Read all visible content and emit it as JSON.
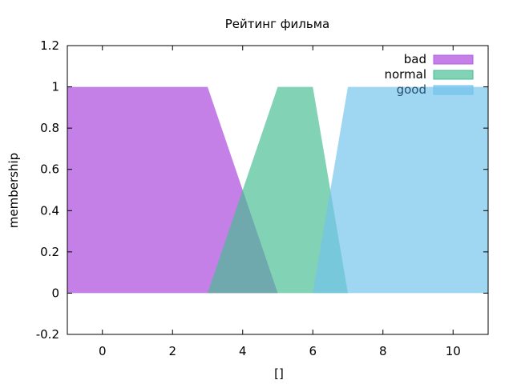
{
  "chart_data": {
    "type": "area",
    "title": "Рейтинг фильма",
    "xlabel": "[]",
    "ylabel": "membership",
    "xlim": [
      -1,
      11
    ],
    "ylim": [
      -0.2,
      1.2
    ],
    "xticks": [
      0,
      2,
      4,
      6,
      8,
      10
    ],
    "xtick_labels": [
      "0",
      "2",
      "4",
      "6",
      "8",
      "10"
    ],
    "yticks": [
      -0.2,
      0,
      0.2,
      0.4,
      0.6,
      0.8,
      1,
      1.2
    ],
    "ytick_labels": [
      "-0.2",
      "0",
      "0.2",
      "0.4",
      "0.6",
      "0.8",
      "1",
      "1.2"
    ],
    "grid": false,
    "legend_position": "top-right",
    "series": [
      {
        "name": "bad",
        "color": "#b45ce0",
        "label_color": "#000000",
        "points": [
          [
            -1,
            1
          ],
          [
            3,
            1
          ],
          [
            5,
            0
          ]
        ]
      },
      {
        "name": "normal",
        "color": "#47bc94",
        "label_color": "#000000",
        "points": [
          [
            3,
            0
          ],
          [
            5,
            1
          ],
          [
            6,
            1
          ],
          [
            7,
            0
          ]
        ]
      },
      {
        "name": "good",
        "color": "#72c2ea",
        "label_color": "#2a4f6e",
        "points": [
          [
            6,
            0
          ],
          [
            7,
            1
          ],
          [
            11,
            1
          ]
        ]
      }
    ]
  }
}
